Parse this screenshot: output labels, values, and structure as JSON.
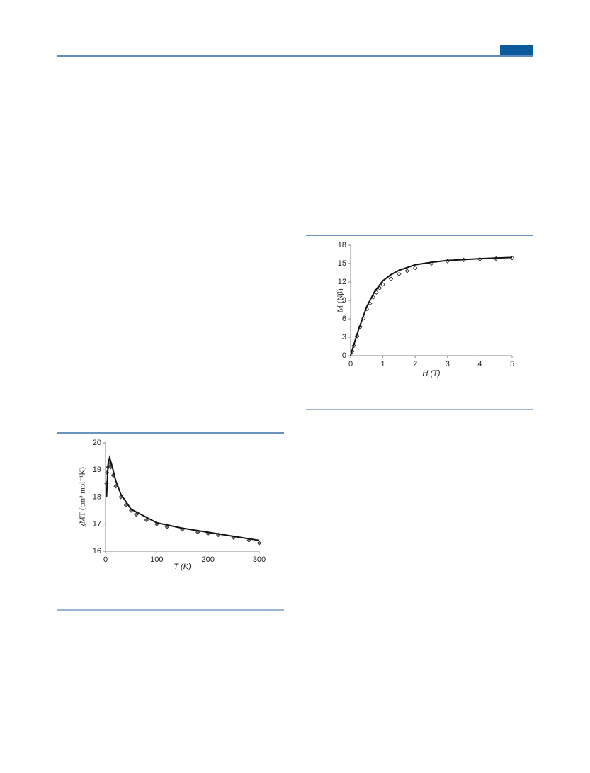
{
  "chart_data": [
    {
      "type": "scatter",
      "ylabel": "M (Nβ)",
      "xlabel": "H (T)",
      "xlim": [
        0,
        5
      ],
      "xticks": [
        0,
        1,
        2,
        3,
        4,
        5
      ],
      "ylim": [
        0,
        18
      ],
      "yticks": [
        0,
        3,
        6,
        9,
        12,
        15,
        18
      ],
      "grid": false,
      "series": [
        {
          "color": "#222222",
          "marker": "diamond",
          "fill": "#ffffff",
          "x": [
            0.05,
            0.1,
            0.2,
            0.3,
            0.4,
            0.5,
            0.6,
            0.7,
            0.8,
            0.9,
            1.0,
            1.25,
            1.5,
            1.75,
            2,
            2.5,
            3,
            3.5,
            4,
            4.5,
            5
          ],
          "values": [
            0.7,
            1.6,
            3.2,
            4.7,
            6.1,
            7.6,
            8.5,
            9.5,
            10.3,
            11.0,
            11.6,
            12.5,
            13.3,
            13.8,
            14.3,
            15.0,
            15.4,
            15.6,
            15.7,
            15.8,
            15.9
          ]
        },
        {
          "color": "#111111",
          "marker": "line",
          "x": [
            0,
            0.1,
            0.25,
            0.5,
            0.75,
            1,
            1.25,
            1.5,
            2,
            2.5,
            3,
            4,
            5
          ],
          "values": [
            0,
            1.8,
            4.3,
            8.0,
            10.5,
            12.2,
            13.2,
            13.9,
            14.8,
            15.2,
            15.5,
            15.8,
            16.0
          ]
        }
      ]
    },
    {
      "type": "scatter",
      "ylabel": "χMT (cm³ mol⁻¹K)",
      "xlabel": "T (K)",
      "xlim": [
        0,
        300
      ],
      "xticks": [
        0,
        100,
        200,
        300
      ],
      "ylim": [
        16,
        20
      ],
      "yticks": [
        16,
        17,
        18,
        19,
        20
      ],
      "grid": false,
      "series": [
        {
          "color": "#333333",
          "marker": "diamond",
          "fill": "#777777",
          "x": [
            2,
            3,
            5,
            8,
            10,
            15,
            20,
            30,
            40,
            50,
            60,
            80,
            100,
            120,
            150,
            180,
            200,
            220,
            250,
            280,
            300
          ],
          "values": [
            18.5,
            18.9,
            19.1,
            19.2,
            19.1,
            18.8,
            18.4,
            18.0,
            17.7,
            17.5,
            17.35,
            17.15,
            17.0,
            16.9,
            16.8,
            16.7,
            16.65,
            16.6,
            16.5,
            16.4,
            16.3
          ]
        },
        {
          "color": "#111111",
          "marker": "line",
          "x": [
            2,
            5,
            8,
            12,
            20,
            30,
            50,
            100,
            150,
            200,
            250,
            300
          ],
          "values": [
            18.0,
            19.2,
            19.45,
            19.2,
            18.6,
            18.1,
            17.55,
            17.05,
            16.85,
            16.7,
            16.55,
            16.4
          ]
        }
      ]
    }
  ]
}
